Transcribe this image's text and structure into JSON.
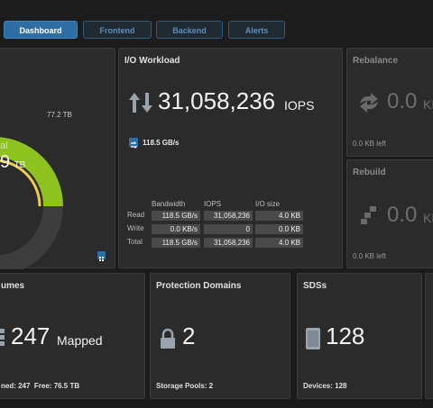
{
  "tabs": [
    {
      "label": "Dashboard"
    },
    {
      "label": "Frontend"
    },
    {
      "label": "Backend"
    },
    {
      "label": "Alerts"
    }
  ],
  "capacity": {
    "marker_label": "77.2 TB",
    "center_label": "al",
    "center_value": "9",
    "center_unit": "TB"
  },
  "io": {
    "title": "I/O Workload",
    "iops_value": "31,058,236",
    "iops_unit": "IOPS",
    "bandwidth": "118.5 GB/s",
    "headers": [
      "Bandwidth",
      "IOPS",
      "I/O size"
    ],
    "rows": [
      {
        "label": "Read",
        "bandwidth": "118.5 GB/s",
        "iops": "31,058,236",
        "io_size": "4.0 KB"
      },
      {
        "label": "Write",
        "bandwidth": "0.0 KB/s",
        "iops": "0",
        "io_size": "0.0 KB"
      },
      {
        "label": "Total",
        "bandwidth": "118.5 GB/s",
        "iops": "31,058,236",
        "io_size": "4.0 KB"
      }
    ]
  },
  "rebalance": {
    "title": "Rebalance",
    "value": "0.0",
    "unit": "KB",
    "left": "0.0 KB left"
  },
  "rebuild": {
    "title": "Rebuild",
    "value": "0.0",
    "unit": "KB",
    "left": "0.0 KB left"
  },
  "volumes": {
    "title": "umes",
    "value": "247",
    "suffix": "Mapped",
    "footer": "ned: 247  Free: 76.5 TB"
  },
  "protection": {
    "title": "Protection Domains",
    "value": "2",
    "footer": "Storage Pools: 2"
  },
  "sds": {
    "title": "SDSs",
    "value": "128",
    "footer": "Devices: 128"
  },
  "colors": {
    "accent": "#2f6ea5",
    "green": "#8dc21f",
    "yellow": "#f0cc4a",
    "ring": "#3d3d3d"
  }
}
